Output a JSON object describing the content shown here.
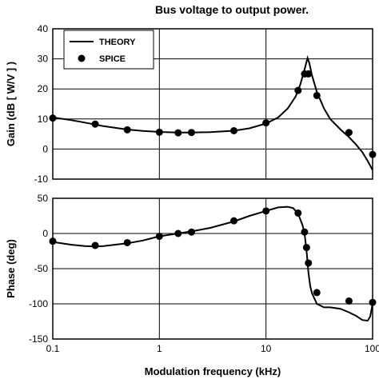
{
  "chart_data": {
    "type": "line",
    "title": "Bus voltage to output power.",
    "xlabel": "Modulation frequency (kHz)",
    "x_scale": "log",
    "xlim": [
      0.1,
      100
    ],
    "x_ticks": [
      "0.1",
      "1",
      "10",
      "100"
    ],
    "grid": true,
    "legend": {
      "placement": "top-left",
      "entries": [
        "THEORY",
        "SPICE"
      ]
    },
    "panels": [
      {
        "ylabel": "Gain (dB [ W/V ] )",
        "ylim": [
          -10,
          40
        ],
        "y_ticks": [
          "-10",
          "0",
          "10",
          "20",
          "30",
          "40"
        ],
        "series": [
          {
            "name": "THEORY",
            "style": "line",
            "x": [
              0.1,
              0.15,
              0.2,
              0.3,
              0.5,
              0.7,
              1,
              1.5,
              2,
              3,
              5,
              7,
              10,
              13,
              16,
              19,
              21,
              23,
              24.5,
              25.5,
              27,
              30,
              35,
              40,
              50,
              60,
              70,
              80,
              90,
              100
            ],
            "y": [
              10.5,
              9.6,
              8.8,
              7.6,
              6.5,
              6.0,
              5.7,
              5.5,
              5.5,
              5.6,
              6.1,
              6.9,
              8.5,
              10.5,
              13.5,
              17.5,
              21.5,
              26.5,
              30.3,
              28.5,
              24.5,
              19.0,
              13.5,
              10.0,
              6.5,
              4.0,
              1.5,
              -1.0,
              -4.0,
              -7.0
            ]
          },
          {
            "name": "SPICE",
            "style": "markers",
            "x": [
              0.1,
              0.25,
              0.5,
              1,
              1.5,
              2,
              5,
              10,
              20,
              23,
              25,
              30,
              60,
              100
            ],
            "y": [
              10.3,
              8.3,
              6.4,
              5.6,
              5.4,
              5.5,
              6.1,
              8.7,
              19.5,
              25.0,
              25.0,
              17.8,
              5.5,
              -1.8
            ]
          }
        ]
      },
      {
        "ylabel": "Phase (deg)",
        "ylim": [
          -150,
          50
        ],
        "y_ticks": [
          "-150",
          "-100",
          "-50",
          "0",
          "50"
        ],
        "series": [
          {
            "name": "THEORY",
            "style": "line",
            "x": [
              0.1,
              0.15,
              0.2,
              0.25,
              0.3,
              0.5,
              0.7,
              1,
              1.5,
              2,
              3,
              5,
              7,
              10,
              13,
              16,
              18,
              20,
              22,
              23,
              24,
              25,
              26,
              27,
              30,
              35,
              40,
              50,
              60,
              70,
              80,
              90,
              95,
              100
            ],
            "y": [
              -12,
              -16,
              -18,
              -18.5,
              -18,
              -14,
              -10,
              -4,
              0,
              3,
              8,
              17,
              25,
              32,
              37,
              38,
              36,
              28,
              12,
              0,
              -25,
              -55,
              -75,
              -85,
              -100,
              -105,
              -105,
              -107,
              -112,
              -117,
              -123,
              -124,
              -118,
              -100
            ]
          },
          {
            "name": "SPICE",
            "style": "markers",
            "x": [
              0.1,
              0.25,
              0.5,
              1,
              1.5,
              2,
              5,
              10,
              20,
              23,
              24,
              25,
              30,
              60,
              100
            ],
            "y": [
              -11,
              -17,
              -13,
              -4,
              0,
              2,
              18,
              32,
              29,
              2,
              -20,
              -42,
              -84,
              -96,
              -98
            ]
          }
        ]
      }
    ]
  }
}
